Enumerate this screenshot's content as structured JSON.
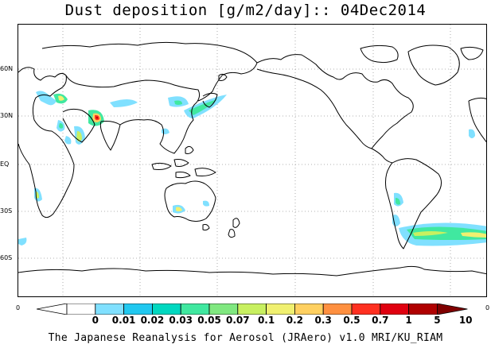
{
  "title": "Dust deposition [g/m2/day]:: 04Dec2014",
  "latitude_labels": [
    "60N",
    "30N",
    "EQ",
    "30S",
    "60S"
  ],
  "colorbar": {
    "end_left": "0",
    "end_right": "0",
    "levels": [
      "0",
      "0.01",
      "0.02",
      "0.03",
      "0.05",
      "0.07",
      "0.1",
      "0.2",
      "0.3",
      "0.5",
      "0.7",
      "1",
      "5",
      "10"
    ],
    "colors": [
      "#ffffff",
      "#ffffff",
      "#80e0ff",
      "#20c8f0",
      "#00d8c0",
      "#40e8a0",
      "#80e880",
      "#c8f060",
      "#f0f070",
      "#ffd060",
      "#ff9040",
      "#ff3020",
      "#e00010",
      "#b00000",
      "#800000"
    ]
  },
  "credit": "The Japanese Reanalysis for Aerosol (JRAero) v1.0 MRI/KU_RIAM"
}
